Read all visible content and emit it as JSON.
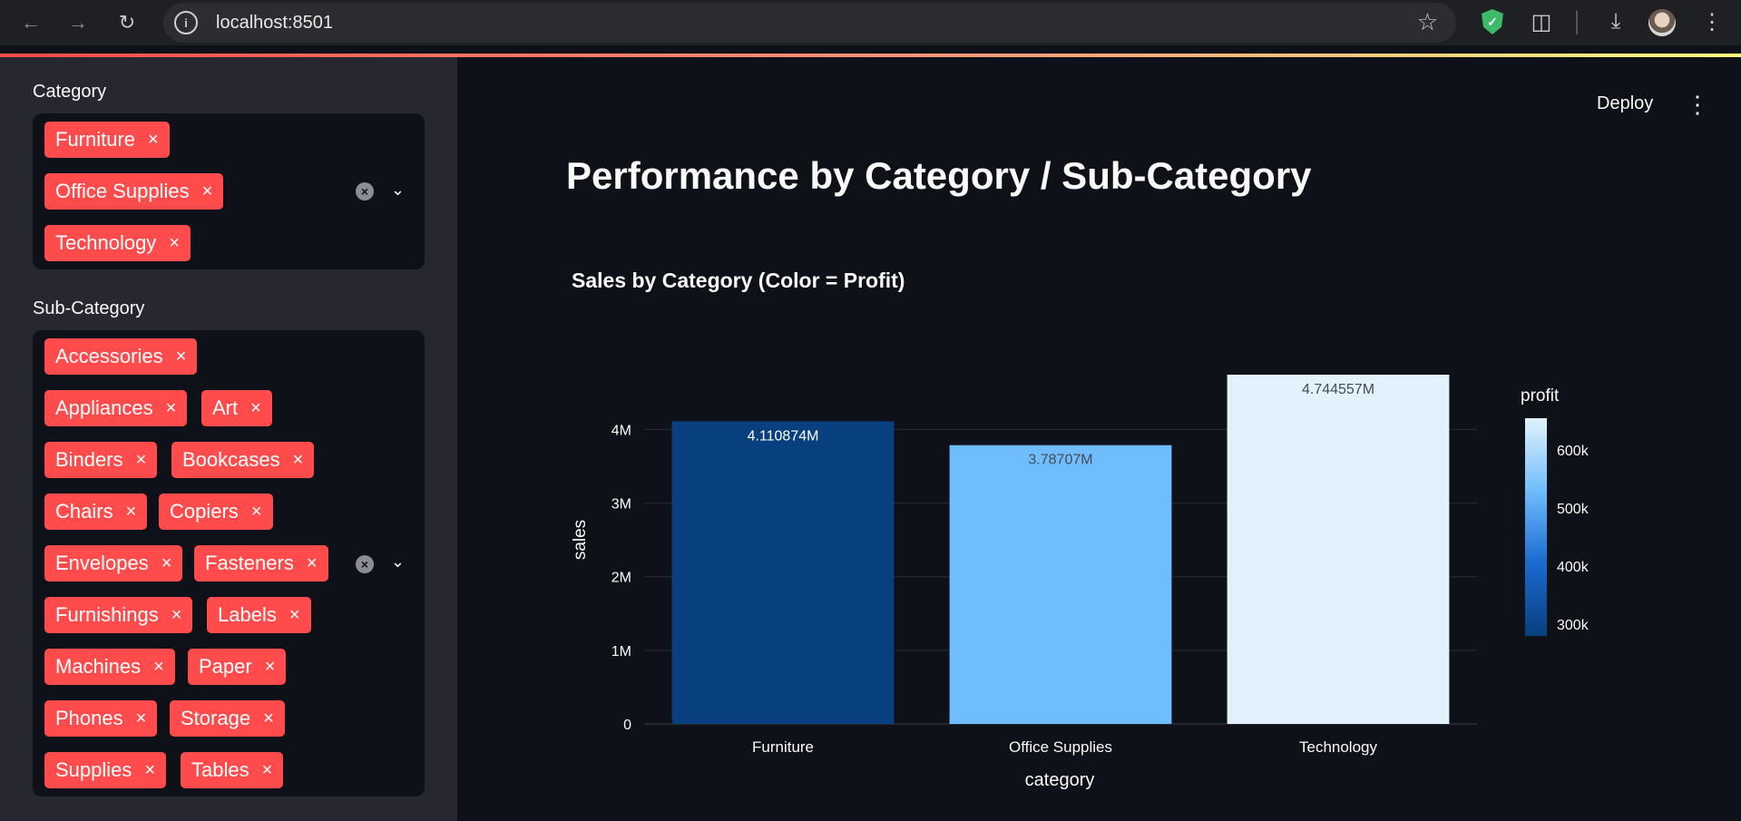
{
  "browser": {
    "url": "localhost:8501"
  },
  "sidebar": {
    "category": {
      "label": "Category",
      "chips": [
        "Furniture",
        "Office Supplies",
        "Technology"
      ]
    },
    "subcategory": {
      "label": "Sub-Category",
      "chips": [
        "Accessories",
        "Appliances",
        "Art",
        "Binders",
        "Bookcases",
        "Chairs",
        "Copiers",
        "Envelopes",
        "Fasteners",
        "Furnishings",
        "Labels",
        "Machines",
        "Paper",
        "Phones",
        "Storage",
        "Supplies",
        "Tables"
      ]
    },
    "chip_remove": "×"
  },
  "header": {
    "deploy_label": "Deploy"
  },
  "main": {
    "page_title": "Performance by Category / Sub-Category"
  },
  "chart_data": {
    "type": "bar",
    "title": "Sales by Category (Color = Profit)",
    "xlabel": "category",
    "ylabel": "sales",
    "categories": [
      "Furniture",
      "Office Supplies",
      "Technology"
    ],
    "values": [
      4110874,
      3787070,
      4744557
    ],
    "data_labels": [
      "4.110874M",
      "3.78707M",
      "4.744557M"
    ],
    "bar_colors": [
      "#083f7f",
      "#6fbdfd",
      "#e1f2fd"
    ],
    "label_colors": [
      "#ffffff",
      "#444b55",
      "#444b55"
    ],
    "yticks": [
      0,
      1000000,
      2000000,
      3000000,
      4000000
    ],
    "ytick_labels": [
      "0",
      "1M",
      "2M",
      "3M",
      "4M"
    ],
    "ylim": [
      0,
      4744557
    ],
    "grid": true,
    "colorbar": {
      "title": "profit",
      "tick_labels": [
        "600k",
        "500k",
        "400k",
        "300k"
      ],
      "colors": [
        "#e1f2fd",
        "#6fbdfd",
        "#1a6ad0",
        "#083f7f"
      ]
    }
  }
}
